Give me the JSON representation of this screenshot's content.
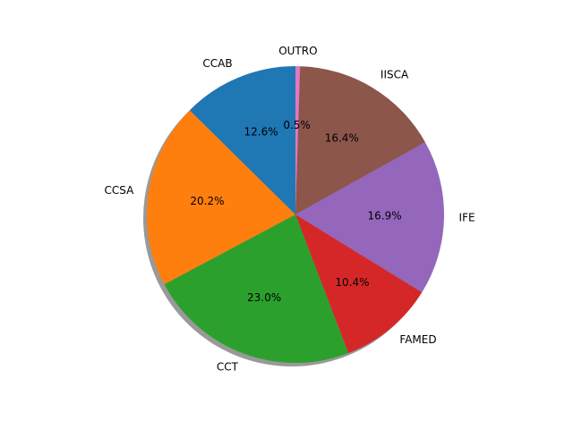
{
  "chart_data": {
    "type": "pie",
    "title": "",
    "shadow": true,
    "start_angle_deg": 90,
    "direction": "clockwise",
    "slices": [
      {
        "label": "OUTRO",
        "value": 0.5,
        "pct_label": "0.5%",
        "color": "#e377c2"
      },
      {
        "label": "IISCA",
        "value": 16.4,
        "pct_label": "16.4%",
        "color": "#8c564b"
      },
      {
        "label": "IFE",
        "value": 16.9,
        "pct_label": "16.9%",
        "color": "#9467bd"
      },
      {
        "label": "FAMED",
        "value": 10.4,
        "pct_label": "10.4%",
        "color": "#d62728"
      },
      {
        "label": "CCT",
        "value": 23.0,
        "pct_label": "23.0%",
        "color": "#2ca02c"
      },
      {
        "label": "CCSA",
        "value": 20.2,
        "pct_label": "20.2%",
        "color": "#ff7f0e"
      },
      {
        "label": "CCAB",
        "value": 12.6,
        "pct_label": "12.6%",
        "color": "#1f77b4"
      }
    ]
  }
}
